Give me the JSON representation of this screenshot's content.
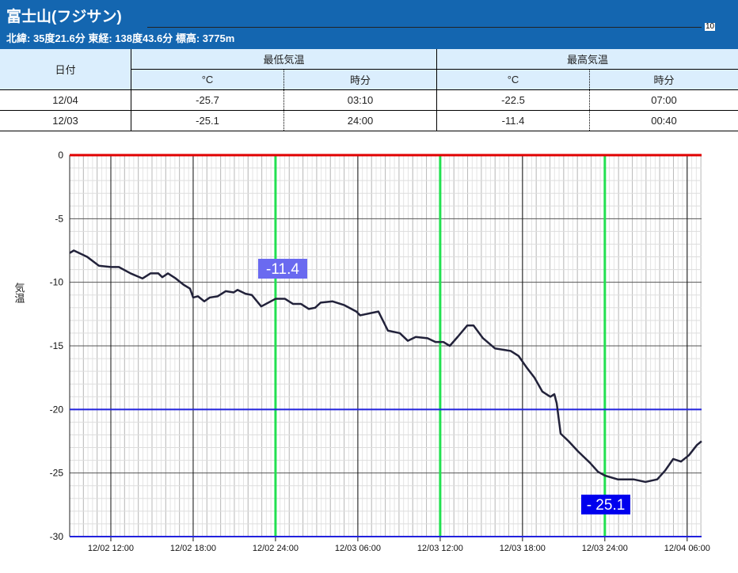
{
  "header": {
    "title": "富士山(フジサン)",
    "subtitle": "北緯: 35度21.6分 東経: 138度43.6分 標高: 3775m",
    "stray_tick": "10"
  },
  "table": {
    "date_header": "日付",
    "min_header": "最低気温",
    "max_header": "最高気温",
    "unit_c": "°C",
    "unit_time": "時分",
    "rows": [
      {
        "date": "12/04",
        "min_c": "-25.7",
        "min_time": "03:10",
        "max_c": "-22.5",
        "max_time": "07:00"
      },
      {
        "date": "12/03",
        "min_c": "-25.1",
        "min_time": "24:00",
        "max_c": "-11.4",
        "max_time": "00:40"
      }
    ]
  },
  "chart_data": {
    "type": "line",
    "ylabel": "気温",
    "ylim": [
      -30,
      0
    ],
    "yticks": [
      "0",
      "-5",
      "-10",
      "-15",
      "-20",
      "-25",
      "-30"
    ],
    "x_unit": "hours since 12/02 09:00",
    "xlim": [
      0,
      46.05
    ],
    "xticks": [
      {
        "h": 3,
        "label": "12/02 12:00"
      },
      {
        "h": 9,
        "label": "12/02 18:00"
      },
      {
        "h": 15,
        "label": "12/02 24:00"
      },
      {
        "h": 21,
        "label": "12/03 06:00"
      },
      {
        "h": 27,
        "label": "12/03 12:00"
      },
      {
        "h": 33,
        "label": "12/03 18:00"
      },
      {
        "h": 39,
        "label": "12/03 24:00"
      },
      {
        "h": 45,
        "label": "12/04 06:00"
      }
    ],
    "green_lines_h": [
      15,
      27,
      39
    ],
    "ref_lines": {
      "red": 0,
      "blue": [
        -20,
        -30
      ]
    },
    "annotations": [
      {
        "label": "-11.4",
        "bg": "#6a6af0"
      },
      {
        "label": "- 25.1",
        "bg": "#0000ee"
      }
    ],
    "colors": {
      "line": "#22223a",
      "red": "#e00000",
      "blue": "#2222dd",
      "green": "#22e050"
    },
    "series": [
      [
        0,
        -7.7
      ],
      [
        0.3,
        -7.5
      ],
      [
        1.27,
        -8.0
      ],
      [
        2.13,
        -8.7
      ],
      [
        3,
        -8.8
      ],
      [
        3.58,
        -8.8
      ],
      [
        4.44,
        -9.3
      ],
      [
        5.31,
        -9.7
      ],
      [
        5.89,
        -9.3
      ],
      [
        6.46,
        -9.3
      ],
      [
        6.75,
        -9.6
      ],
      [
        7.16,
        -9.3
      ],
      [
        7.73,
        -9.7
      ],
      [
        8.31,
        -10.2
      ],
      [
        8.77,
        -10.5
      ],
      [
        9,
        -11.2
      ],
      [
        9.35,
        -11.1
      ],
      [
        9.81,
        -11.5
      ],
      [
        10.21,
        -11.2
      ],
      [
        10.79,
        -11.1
      ],
      [
        11.37,
        -10.7
      ],
      [
        11.95,
        -10.8
      ],
      [
        12.23,
        -10.6
      ],
      [
        12.81,
        -10.9
      ],
      [
        13.27,
        -11.0
      ],
      [
        13.96,
        -11.9
      ],
      [
        15,
        -11.3
      ],
      [
        15.69,
        -11.3
      ],
      [
        16.27,
        -11.7
      ],
      [
        16.85,
        -11.7
      ],
      [
        17.43,
        -12.1
      ],
      [
        17.89,
        -12.0
      ],
      [
        18.29,
        -11.6
      ],
      [
        19.16,
        -11.5
      ],
      [
        20.02,
        -11.8
      ],
      [
        20.89,
        -12.3
      ],
      [
        21.17,
        -12.6
      ],
      [
        22.04,
        -12.4
      ],
      [
        22.5,
        -12.3
      ],
      [
        23.19,
        -13.8
      ],
      [
        24.06,
        -14.0
      ],
      [
        24.64,
        -14.6
      ],
      [
        25.22,
        -14.3
      ],
      [
        26.08,
        -14.4
      ],
      [
        26.66,
        -14.7
      ],
      [
        27.24,
        -14.7
      ],
      [
        27.7,
        -15.0
      ],
      [
        28.27,
        -14.3
      ],
      [
        28.97,
        -13.4
      ],
      [
        29.43,
        -13.4
      ],
      [
        30.12,
        -14.4
      ],
      [
        30.99,
        -15.2
      ],
      [
        32.14,
        -15.4
      ],
      [
        32.72,
        -15.8
      ],
      [
        33.3,
        -16.7
      ],
      [
        33.87,
        -17.5
      ],
      [
        34.45,
        -18.6
      ],
      [
        35.03,
        -19.0
      ],
      [
        35.32,
        -18.8
      ],
      [
        35.49,
        -19.5
      ],
      [
        35.78,
        -21.9
      ],
      [
        36.36,
        -22.5
      ],
      [
        37.05,
        -23.3
      ],
      [
        37.92,
        -24.2
      ],
      [
        38.5,
        -24.9
      ],
      [
        39,
        -25.2
      ],
      [
        39.94,
        -25.5
      ],
      [
        41.09,
        -25.5
      ],
      [
        41.96,
        -25.7
      ],
      [
        42.82,
        -25.5
      ],
      [
        43.4,
        -24.8
      ],
      [
        43.98,
        -23.9
      ],
      [
        44.55,
        -24.1
      ],
      [
        45.13,
        -23.6
      ],
      [
        45.71,
        -22.8
      ],
      [
        46.05,
        -22.5
      ]
    ]
  }
}
